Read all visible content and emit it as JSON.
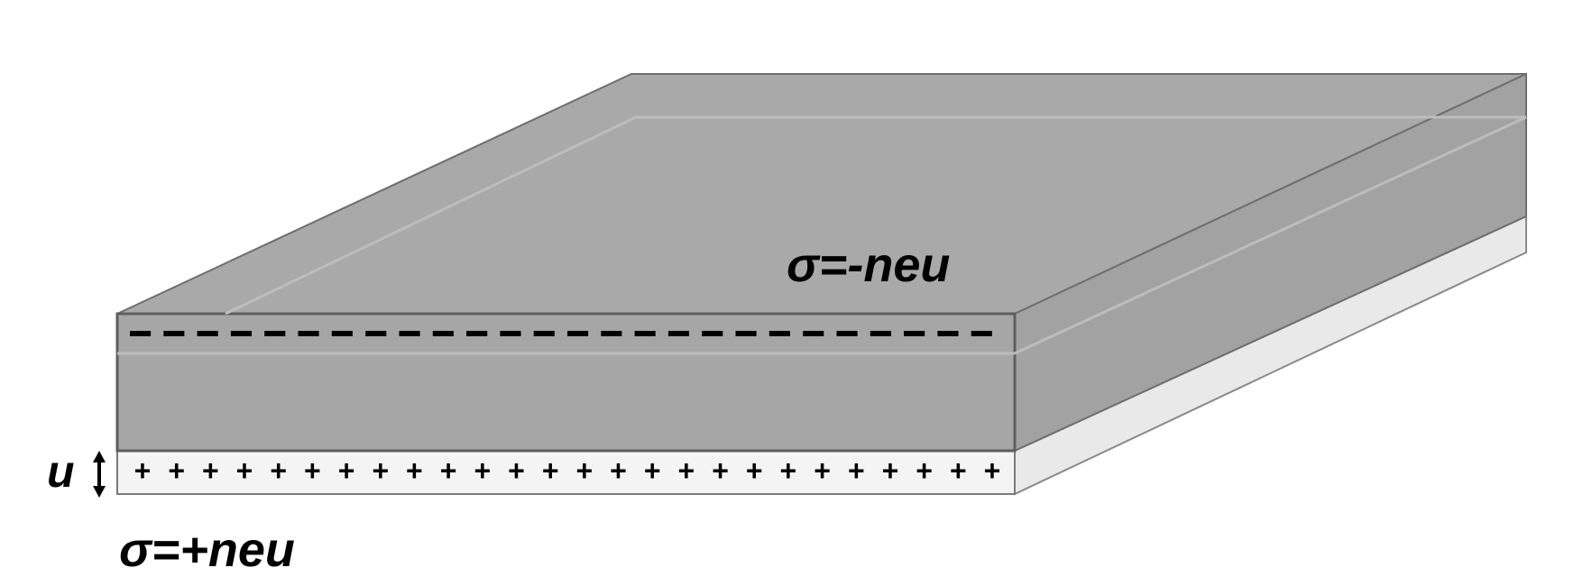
{
  "colors": {
    "background": "#ffffff",
    "slab_top": "#a9a9a9",
    "slab_front": "#a6a6a6",
    "slab_side": "#a2a2a2",
    "edge": "#6e6e6e",
    "inner_line": "#bdbdbd",
    "thin_layer": "#f4f4f4",
    "thin_layer_side": "#e9e9e9",
    "charge": "#000000"
  },
  "labels": {
    "top_sheet_charge": "σ=-neu",
    "bottom_sheet_charge": "σ=+neu",
    "displacement": "u"
  },
  "charges": {
    "negative_symbol": "–",
    "positive_symbol": "+",
    "negative_count": 26,
    "positive_count": 26
  },
  "icons": {
    "displacement_arrow": "double-headed-vertical-arrow-icon"
  }
}
